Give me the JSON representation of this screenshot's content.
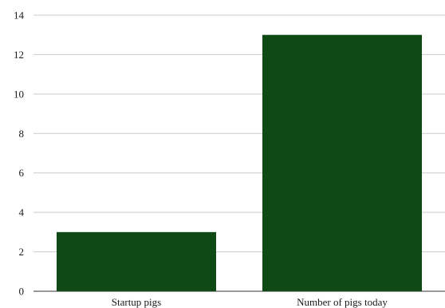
{
  "chart_data": {
    "type": "bar",
    "categories": [
      "Startup pigs",
      "Number of pigs today"
    ],
    "values": [
      3,
      13
    ],
    "title": "",
    "xlabel": "",
    "ylabel": "",
    "ylim": [
      0,
      14
    ],
    "yticks": [
      0,
      2,
      4,
      6,
      8,
      10,
      12,
      14
    ],
    "grid": true,
    "legend": "none",
    "bar_color": "#0f4a14",
    "grid_color": "#cccccc"
  }
}
